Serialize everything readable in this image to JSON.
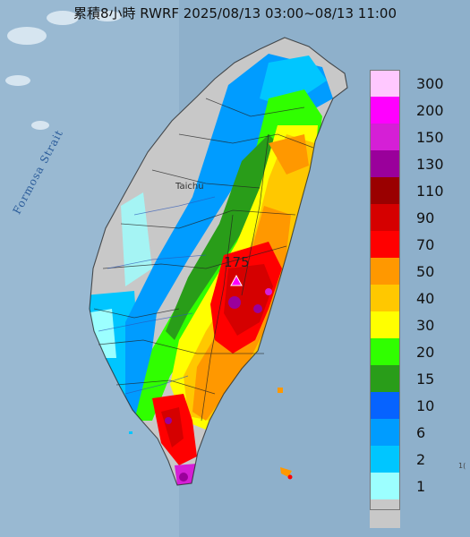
{
  "title": "累積8小時 RWRF 2025/08/13 03:00~08/13 11:00",
  "labels": {
    "strait": "Formosa Strait",
    "city": "Taichu",
    "max_value": "175",
    "corner": "1("
  },
  "legend": [
    {
      "label": "300",
      "color": "#ffc8ff"
    },
    {
      "label": "200",
      "color": "#ff00ff"
    },
    {
      "label": "150",
      "color": "#d51fd6"
    },
    {
      "label": "130",
      "color": "#9a009b"
    },
    {
      "label": "110",
      "color": "#9a0000"
    },
    {
      "label": "90",
      "color": "#d50000"
    },
    {
      "label": "70",
      "color": "#ff0000"
    },
    {
      "label": "50",
      "color": "#ff9800"
    },
    {
      "label": "40",
      "color": "#ffc800"
    },
    {
      "label": "30",
      "color": "#ffff00"
    },
    {
      "label": "20",
      "color": "#30ff00"
    },
    {
      "label": "15",
      "color": "#299d19"
    },
    {
      "label": "10",
      "color": "#0663ff"
    },
    {
      "label": "6",
      "color": "#009cff"
    },
    {
      "label": "2",
      "color": "#00c6ff"
    },
    {
      "label": "1",
      "color": "#9cffff"
    },
    {
      "label": "",
      "color": "#c8c8c8"
    }
  ]
}
